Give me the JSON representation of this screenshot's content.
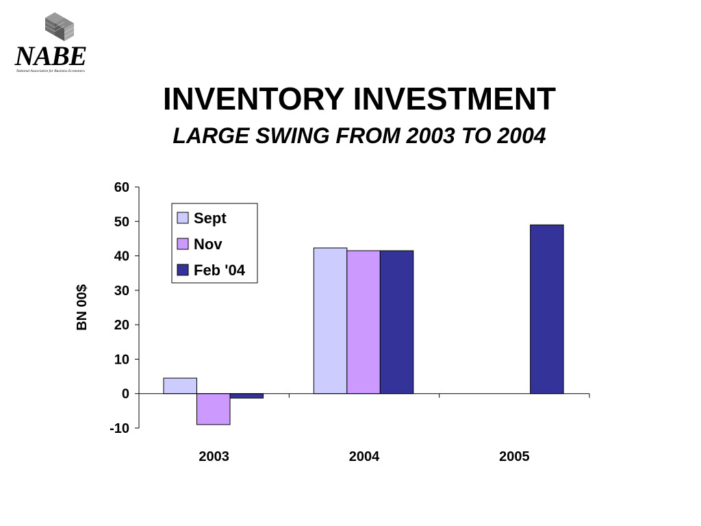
{
  "logo": {
    "text": "NABE",
    "subtext": "National Association for Business Economics"
  },
  "title": "INVENTORY INVESTMENT",
  "subtitle": "LARGE SWING FROM 2003 TO 2004",
  "chart_data": {
    "type": "bar",
    "categories": [
      "2003",
      "2004",
      "2005"
    ],
    "series": [
      {
        "name": "Sept",
        "color": "#ccccff",
        "values": [
          4.5,
          42.3,
          null
        ]
      },
      {
        "name": "Nov",
        "color": "#cc99ff",
        "values": [
          -9.0,
          41.5,
          null
        ]
      },
      {
        "name": "Feb '04",
        "color": "#333399",
        "values": [
          -1.3,
          41.5,
          49.0
        ]
      }
    ],
    "ylabel": "BN 00$",
    "ylim": [
      -10,
      60
    ],
    "yticks": [
      -10,
      0,
      10,
      20,
      30,
      40,
      50,
      60
    ],
    "legend": "top-left",
    "grid": false
  }
}
